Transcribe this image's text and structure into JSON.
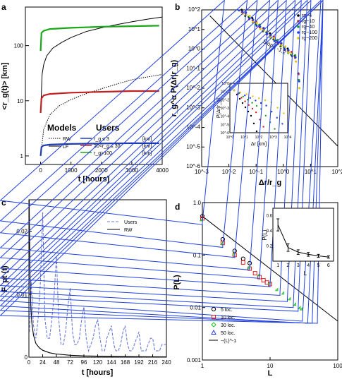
{
  "chart_data": [
    {
      "panel": "a",
      "type": "line",
      "xlabel": "t [hours]",
      "ylabel": "<r_g(t)> [km]",
      "xlim": [
        -500,
        4000
      ],
      "ylim": [
        0.7,
        500
      ],
      "yscale": "log",
      "xticks": [
        "0",
        "1000",
        "2000",
        "3000",
        "4000"
      ],
      "yticks": [
        "1",
        "10",
        "100"
      ],
      "legend": {
        "models_header": "Models",
        "users_header": "Users",
        "models": [
          "RW",
          "LF"
        ],
        "users": [
          "r_g ≤ 3",
          "20<r_g ≤ 30",
          "r_g>100"
        ],
        "unit": "[km]"
      },
      "series": [
        {
          "name": "RW",
          "style": "dotted",
          "x": [
            20,
            100,
            300,
            600,
            1000,
            1500,
            2000,
            2500,
            3000,
            3500,
            4000
          ],
          "y": [
            1.2,
            3.0,
            5.5,
            8.0,
            10.5,
            13.5,
            16.5,
            20,
            24,
            27,
            30
          ]
        },
        {
          "name": "LF",
          "style": "solid",
          "x": [
            10,
            50,
            100,
            200,
            400,
            700,
            1000,
            1500,
            2000,
            2500,
            3000,
            3500,
            4000
          ],
          "y": [
            8,
            30,
            45,
            65,
            90,
            115,
            140,
            180,
            210,
            240,
            270,
            300,
            330
          ]
        },
        {
          "name": "r_g ≤ 3",
          "color": "#1f3cb4",
          "x": [
            0,
            30,
            100,
            300,
            1000,
            2000,
            3000,
            3900
          ],
          "y": [
            1.0,
            1.45,
            1.55,
            1.6,
            1.65,
            1.68,
            1.7,
            1.7
          ]
        },
        {
          "name": "20<r_g ≤ 30",
          "color": "#c02020",
          "x": [
            0,
            30,
            100,
            300,
            1000,
            2000,
            3000,
            3900
          ],
          "y": [
            6,
            11,
            12.5,
            13.3,
            14,
            14.5,
            15,
            15
          ]
        },
        {
          "name": "r_g>100",
          "color": "#18a818",
          "x": [
            0,
            30,
            100,
            300,
            1000,
            2000,
            3000,
            3900
          ],
          "y": [
            80,
            170,
            185,
            200,
            210,
            220,
            225,
            230
          ]
        }
      ]
    },
    {
      "panel": "b",
      "type": "scatter",
      "xlabel": "Δr/r_g",
      "ylabel": "r_g^α P(Δr|r_g)",
      "xscale": "log",
      "yscale": "log",
      "xlim": [
        0.001,
        100
      ],
      "ylim": [
        1e-06,
        100
      ],
      "xticks": [
        "10^-3",
        "10^-2",
        "10^-1",
        "10^0",
        "10^1",
        "10^2"
      ],
      "yticks": [
        "10^-6",
        "10^-5",
        "10^-4",
        "10^-3",
        "10^-2",
        "10^-1",
        "10^0",
        "10^1",
        "10^2"
      ],
      "annotation": "Slope -1.2",
      "legend": [
        "rg~4",
        "rg~10",
        "rg~40",
        "rg~100",
        "rg~200"
      ],
      "legend_colors": [
        "#000000",
        "#e02020",
        "#20a020",
        "#2040e0",
        "#e0c000"
      ],
      "fit_line": {
        "slope": -1.2,
        "x": [
          0.002,
          100
        ],
        "y": [
          50,
          1.1e-05
        ]
      },
      "inset": {
        "xlabel": "Δr [km]",
        "ylabel": "P(Δr|r_g)",
        "xticks": [
          "10^0",
          "10^1",
          "10^2",
          "10^3",
          "10^4"
        ],
        "yticks": [
          "10^-6",
          "10^-5",
          "10^-4",
          "10^-3",
          "10^-2",
          "10^-1",
          "10^0"
        ]
      }
    },
    {
      "panel": "c",
      "type": "line",
      "xlabel": "t [hours]",
      "ylabel": "F_pt (t)",
      "xlim": [
        0,
        240
      ],
      "ylim": [
        0,
        0.025
      ],
      "xticks": [
        "0",
        "24",
        "48",
        "72",
        "96",
        "120",
        "144",
        "168",
        "192",
        "216",
        "240"
      ],
      "yticks": [
        "0",
        "0.01",
        "0.02"
      ],
      "series": [
        {
          "name": "Users",
          "style": "dashed",
          "color": "#6a7ad8",
          "x": [
            1,
            4,
            8,
            12,
            16,
            20,
            24,
            28,
            32,
            36,
            40,
            44,
            48,
            52,
            56,
            60,
            64,
            68,
            72,
            76,
            80,
            84,
            88,
            92,
            96,
            100,
            104,
            108,
            112,
            116,
            120,
            124,
            128,
            132,
            136,
            140,
            144,
            148,
            152,
            156,
            160,
            164,
            168,
            172,
            176,
            180,
            184,
            188,
            192,
            196,
            200,
            204,
            208,
            212,
            216,
            220,
            224,
            228,
            232,
            236,
            240
          ],
          "y": [
            0.004,
            0.012,
            0.005,
            0.003,
            0.006,
            0.012,
            0.023,
            0.006,
            0.003,
            0.003,
            0.006,
            0.01,
            0.016,
            0.006,
            0.002,
            0.002,
            0.004,
            0.008,
            0.011,
            0.004,
            0.002,
            0.002,
            0.003,
            0.006,
            0.008,
            0.003,
            0.001,
            0.002,
            0.003,
            0.005,
            0.006,
            0.003,
            0.001,
            0.001,
            0.003,
            0.004,
            0.005,
            0.002,
            0.001,
            0.001,
            0.002,
            0.004,
            0.005,
            0.002,
            0.001,
            0.001,
            0.002,
            0.003,
            0.004,
            0.001,
            0.001,
            0.001,
            0.002,
            0.003,
            0.003,
            0.001,
            0.001,
            0.001,
            0.002,
            0.002,
            0.002
          ]
        },
        {
          "name": "RW",
          "style": "solid",
          "color": "#000000",
          "x": [
            0.5,
            1,
            2,
            3,
            5,
            8,
            12,
            18,
            24,
            36,
            48,
            72,
            96,
            144,
            192,
            240
          ],
          "y": [
            0.025,
            0.02,
            0.013,
            0.009,
            0.0055,
            0.0035,
            0.0022,
            0.0015,
            0.0011,
            0.0007,
            0.0005,
            0.0003,
            0.0002,
            0.00012,
            8e-05,
            5e-05
          ]
        }
      ]
    },
    {
      "panel": "d",
      "type": "scatter",
      "xlabel": "L",
      "ylabel": "P(L)",
      "xscale": "log",
      "yscale": "log",
      "xlim": [
        1,
        100
      ],
      "ylim": [
        0.001,
        1
      ],
      "xticks": [
        "1",
        "10",
        "100"
      ],
      "yticks": [
        "0.001",
        "0.01",
        "0.1",
        "1.0"
      ],
      "legend": [
        "5 loc.",
        "10 loc.",
        "30 loc.",
        "50 loc.",
        "~(L)^-1"
      ],
      "fit_line": {
        "label": "~(L)^-1",
        "x": [
          1,
          100
        ],
        "y": [
          0.55,
          0.0055
        ]
      },
      "series": [
        {
          "name": "5 loc.",
          "marker": "circle",
          "color": "#000000",
          "x": [
            1,
            2,
            3,
            4,
            5
          ],
          "y": [
            0.55,
            0.2,
            0.12,
            0.085,
            0.07
          ]
        },
        {
          "name": "10 loc.",
          "marker": "square",
          "color": "#e02020",
          "x": [
            1,
            2,
            3,
            4,
            5,
            6,
            7,
            8,
            9,
            10
          ],
          "y": [
            0.5,
            0.17,
            0.1,
            0.072,
            0.055,
            0.045,
            0.038,
            0.033,
            0.03,
            0.028
          ]
        },
        {
          "name": "30 loc.",
          "marker": "diamond",
          "color": "#20c020",
          "x": [
            1,
            2,
            3,
            5,
            7,
            10,
            13,
            16,
            20,
            24,
            28,
            30
          ],
          "y": [
            0.45,
            0.16,
            0.1,
            0.056,
            0.04,
            0.028,
            0.021,
            0.018,
            0.014,
            0.011,
            0.0095,
            0.009
          ]
        },
        {
          "name": "50 loc.",
          "marker": "triangle",
          "color": "#2040e0",
          "x": [
            1,
            2,
            3,
            5,
            7,
            10,
            14,
            18,
            22,
            26,
            30,
            36,
            42,
            50
          ],
          "y": [
            0.38,
            0.14,
            0.09,
            0.052,
            0.036,
            0.025,
            0.017,
            0.013,
            0.01,
            0.0085,
            0.0055,
            0.005,
            0.005,
            0.005
          ]
        }
      ],
      "inset": {
        "xlabel": "L",
        "ylabel": "P(L)",
        "xticks": [
          "1",
          "2",
          "3",
          "4",
          "5",
          "6"
        ],
        "yticks": [
          "0.2",
          "0.4",
          "0.6"
        ],
        "values": [
          0.48,
          0.18,
          0.12,
          0.09,
          0.07,
          0.055
        ],
        "errors": [
          0.08,
          0.05,
          0.03,
          0.025,
          0.02,
          0.015
        ]
      }
    }
  ],
  "panel_labels": [
    "a",
    "b",
    "c",
    "d"
  ]
}
